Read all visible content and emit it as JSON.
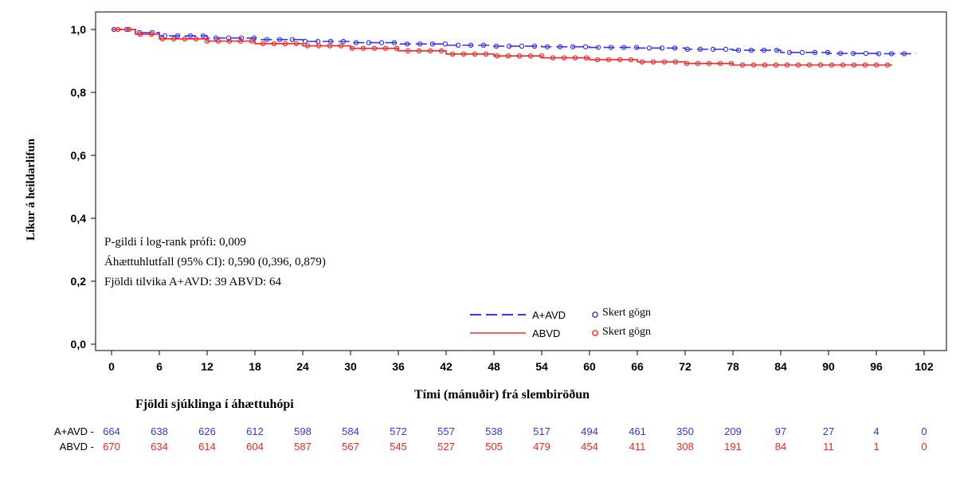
{
  "chart_data": {
    "type": "line",
    "title": "",
    "xlabel": "Tími (mánuðir) frá slembiröðun",
    "ylabel": "Líkur á heildarlifun",
    "xlim": [
      0,
      102
    ],
    "ylim": [
      0,
      1
    ],
    "x_ticks": [
      "0",
      "6",
      "12",
      "18",
      "24",
      "30",
      "36",
      "42",
      "48",
      "54",
      "60",
      "66",
      "72",
      "78",
      "84",
      "90",
      "96",
      "102"
    ],
    "y_ticks": [
      "0,0",
      "0,2",
      "0,4",
      "0,6",
      "0,8",
      "1,0"
    ],
    "grid": false,
    "legend_position": "bottom-center",
    "series": [
      {
        "name": "A+AVD",
        "color": "#3333ff",
        "line_style": "dashed",
        "censored_label": "Skert gögn",
        "x": [
          0,
          3,
          6,
          12,
          18,
          24,
          30,
          36,
          42,
          48,
          54,
          60,
          66,
          72,
          78,
          84,
          90,
          96,
          101
        ],
        "y": [
          1.0,
          0.99,
          0.98,
          0.973,
          0.968,
          0.962,
          0.958,
          0.954,
          0.95,
          0.947,
          0.945,
          0.943,
          0.941,
          0.937,
          0.934,
          0.927,
          0.924,
          0.923,
          0.923
        ]
      },
      {
        "name": "ABVD",
        "color": "#ff2222",
        "line_style": "solid",
        "censored_label": "Skert gögn",
        "x": [
          0,
          3,
          6,
          12,
          18,
          24,
          30,
          36,
          42,
          48,
          54,
          60,
          66,
          72,
          78,
          84,
          90,
          96,
          98
        ],
        "y": [
          1.0,
          0.985,
          0.97,
          0.963,
          0.955,
          0.948,
          0.94,
          0.932,
          0.922,
          0.916,
          0.91,
          0.904,
          0.897,
          0.892,
          0.887,
          0.887,
          0.887,
          0.887,
          0.887
        ]
      }
    ],
    "annotations": [
      "P-gildi í log-rank prófi: 0,009",
      "Áhættuhlutfall (95% CI): 0,590 (0,396, 0,879)",
      "Fjöldi tilvika A+AVD: 39 ABVD: 64"
    ],
    "at_risk": {
      "title": "Fjöldi sjúklinga í áhættuhópi",
      "rows": [
        {
          "label": "A+AVD",
          "color": "#3333ff",
          "values": [
            "664",
            "638",
            "626",
            "612",
            "598",
            "584",
            "572",
            "557",
            "538",
            "517",
            "494",
            "461",
            "350",
            "209",
            "97",
            "27",
            "4",
            "0"
          ]
        },
        {
          "label": "ABVD",
          "color": "#ff2222",
          "values": [
            "670",
            "634",
            "614",
            "604",
            "587",
            "567",
            "545",
            "527",
            "505",
            "479",
            "454",
            "411",
            "308",
            "191",
            "84",
            "11",
            "1",
            "0"
          ]
        }
      ]
    }
  }
}
